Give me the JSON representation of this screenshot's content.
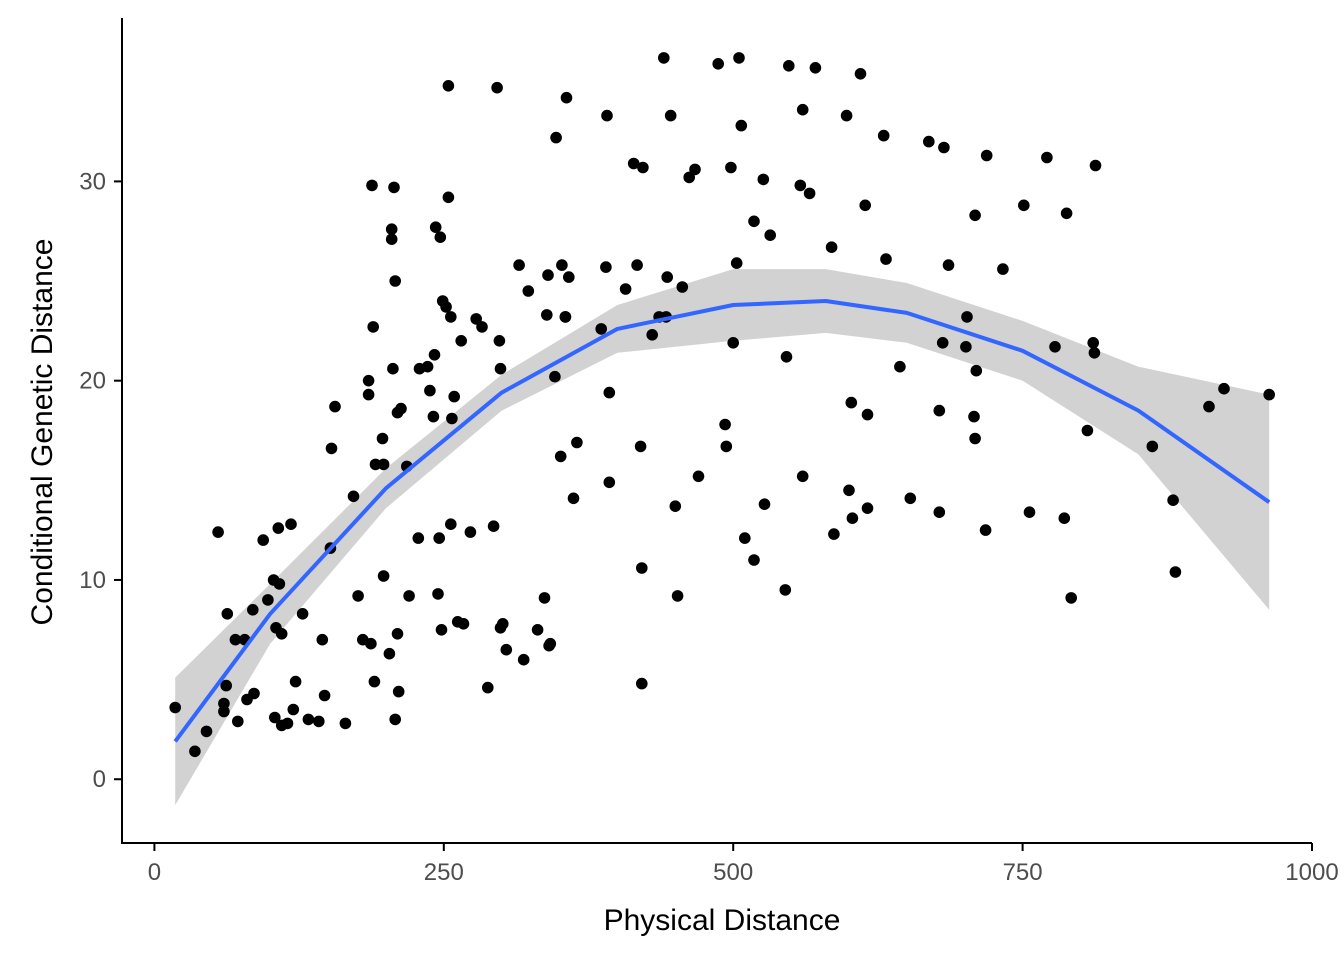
{
  "chart_data": {
    "type": "scatter",
    "xlabel": "Physical Distance",
    "ylabel": "Conditional Genetic Distance",
    "xlim": [
      -28,
      1000
    ],
    "ylim": [
      -3.2,
      38.2
    ],
    "x_ticks": [
      0,
      250,
      500,
      750,
      1000
    ],
    "x_tick_labels": [
      "0",
      "250",
      "500",
      "750",
      "1000"
    ],
    "y_ticks": [
      0,
      10,
      20,
      30
    ],
    "y_tick_labels": [
      "0",
      "10",
      "20",
      "30"
    ],
    "grid": false,
    "legend": "none",
    "colors": {
      "points": "#000000",
      "fit_line": "#3366ff",
      "confidence_band": "#d0d0d0",
      "axis": "#000000"
    },
    "fit": {
      "method": "quadratic",
      "x": [
        18,
        100,
        200,
        300,
        400,
        500,
        580,
        650,
        750,
        850,
        963
      ],
      "y": [
        1.9,
        8.3,
        14.6,
        19.4,
        22.6,
        23.8,
        24.0,
        23.4,
        21.5,
        18.5,
        13.9
      ],
      "lower": [
        -1.3,
        6.8,
        13.6,
        18.5,
        21.4,
        22.0,
        22.4,
        21.9,
        20.0,
        16.3,
        8.5
      ],
      "upper": [
        5.1,
        9.8,
        15.6,
        20.3,
        23.8,
        25.6,
        25.6,
        24.9,
        23.0,
        20.7,
        19.3
      ]
    },
    "points": [
      [
        18,
        3.6
      ],
      [
        35,
        1.4
      ],
      [
        45,
        2.4
      ],
      [
        55,
        12.4
      ],
      [
        60,
        3.8
      ],
      [
        60,
        3.4
      ],
      [
        62,
        4.7
      ],
      [
        63,
        8.3
      ],
      [
        70,
        7.0
      ],
      [
        72,
        2.9
      ],
      [
        78,
        7.0
      ],
      [
        80,
        4.0
      ],
      [
        85,
        8.5
      ],
      [
        86,
        4.3
      ],
      [
        94,
        12.0
      ],
      [
        98,
        9.0
      ],
      [
        103,
        10.0
      ],
      [
        104,
        3.1
      ],
      [
        105,
        7.6
      ],
      [
        107,
        12.6
      ],
      [
        108,
        9.8
      ],
      [
        110,
        7.3
      ],
      [
        110,
        2.7
      ],
      [
        115,
        2.8
      ],
      [
        118,
        12.8
      ],
      [
        120,
        3.5
      ],
      [
        122,
        4.9
      ],
      [
        128,
        8.3
      ],
      [
        133,
        3.0
      ],
      [
        142,
        2.9
      ],
      [
        145,
        7.0
      ],
      [
        147,
        4.2
      ],
      [
        152,
        11.6
      ],
      [
        153,
        16.6
      ],
      [
        156,
        18.7
      ],
      [
        165,
        2.8
      ],
      [
        172,
        14.2
      ],
      [
        176,
        9.2
      ],
      [
        180,
        7.0
      ],
      [
        185,
        20.0
      ],
      [
        185,
        19.3
      ],
      [
        187,
        6.8
      ],
      [
        188,
        29.8
      ],
      [
        189,
        22.7
      ],
      [
        190,
        4.9
      ],
      [
        191,
        15.8
      ],
      [
        197,
        17.1
      ],
      [
        198,
        15.8
      ],
      [
        198,
        10.2
      ],
      [
        203,
        6.3
      ],
      [
        205,
        27.6
      ],
      [
        205,
        27.1
      ],
      [
        206,
        20.6
      ],
      [
        207,
        29.7
      ],
      [
        208,
        25.0
      ],
      [
        208,
        3.0
      ],
      [
        210,
        18.4
      ],
      [
        210,
        7.3
      ],
      [
        211,
        4.4
      ],
      [
        213,
        18.6
      ],
      [
        218,
        15.7
      ],
      [
        220,
        9.2
      ],
      [
        228,
        12.1
      ],
      [
        229,
        20.6
      ],
      [
        236,
        20.7
      ],
      [
        238,
        19.5
      ],
      [
        241,
        18.2
      ],
      [
        242,
        21.3
      ],
      [
        243,
        27.7
      ],
      [
        245,
        9.3
      ],
      [
        246,
        12.1
      ],
      [
        247,
        27.2
      ],
      [
        248,
        7.5
      ],
      [
        249,
        24.0
      ],
      [
        252,
        23.7
      ],
      [
        254,
        34.8
      ],
      [
        254,
        29.2
      ],
      [
        256,
        12.8
      ],
      [
        256,
        23.2
      ],
      [
        257,
        18.1
      ],
      [
        259,
        19.2
      ],
      [
        262,
        7.9
      ],
      [
        265,
        22.0
      ],
      [
        267,
        7.8
      ],
      [
        273,
        12.4
      ],
      [
        278,
        23.1
      ],
      [
        283,
        22.7
      ],
      [
        288,
        4.6
      ],
      [
        293,
        12.7
      ],
      [
        296,
        34.7
      ],
      [
        298,
        22.0
      ],
      [
        299,
        20.6
      ],
      [
        299,
        7.6
      ],
      [
        301,
        7.8
      ],
      [
        304,
        6.5
      ],
      [
        315,
        25.8
      ],
      [
        319,
        6.0
      ],
      [
        323,
        24.5
      ],
      [
        331,
        7.5
      ],
      [
        337,
        9.1
      ],
      [
        340,
        25.3
      ],
      [
        339,
        23.3
      ],
      [
        341,
        6.7
      ],
      [
        342,
        6.8
      ],
      [
        346,
        20.2
      ],
      [
        347,
        32.2
      ],
      [
        351,
        16.2
      ],
      [
        352,
        25.8
      ],
      [
        355,
        23.2
      ],
      [
        355,
        23.2
      ],
      [
        356,
        34.2
      ],
      [
        358,
        25.2
      ],
      [
        362,
        14.1
      ],
      [
        365,
        16.9
      ],
      [
        386,
        22.6
      ],
      [
        390,
        25.7
      ],
      [
        391,
        33.3
      ],
      [
        393,
        19.4
      ],
      [
        393,
        14.9
      ],
      [
        407,
        24.6
      ],
      [
        414,
        30.9
      ],
      [
        417,
        25.8
      ],
      [
        420,
        16.7
      ],
      [
        421,
        4.8
      ],
      [
        421,
        10.6
      ],
      [
        422,
        30.7
      ],
      [
        430,
        22.3
      ],
      [
        436,
        23.2
      ],
      [
        440,
        36.2
      ],
      [
        442,
        23.2
      ],
      [
        443,
        25.2
      ],
      [
        446,
        33.3
      ],
      [
        450,
        13.7
      ],
      [
        452,
        9.2
      ],
      [
        456,
        24.7
      ],
      [
        462,
        30.2
      ],
      [
        467,
        30.6
      ],
      [
        470,
        15.2
      ],
      [
        487,
        35.9
      ],
      [
        493,
        17.8
      ],
      [
        494,
        16.7
      ],
      [
        498,
        30.7
      ],
      [
        500,
        21.9
      ],
      [
        503,
        25.9
      ],
      [
        505,
        36.2
      ],
      [
        507,
        32.8
      ],
      [
        510,
        12.1
      ],
      [
        518,
        11.0
      ],
      [
        518,
        28.0
      ],
      [
        526,
        30.1
      ],
      [
        527,
        13.8
      ],
      [
        532,
        27.3
      ],
      [
        545,
        9.5
      ],
      [
        546,
        21.2
      ],
      [
        548,
        35.8
      ],
      [
        558,
        29.8
      ],
      [
        560,
        15.2
      ],
      [
        560,
        33.6
      ],
      [
        566,
        29.4
      ],
      [
        571,
        35.7
      ],
      [
        585,
        26.7
      ],
      [
        587,
        12.3
      ],
      [
        598,
        33.3
      ],
      [
        600,
        14.5
      ],
      [
        602,
        18.9
      ],
      [
        603,
        13.1
      ],
      [
        610,
        35.4
      ],
      [
        614,
        28.8
      ],
      [
        616,
        18.3
      ],
      [
        616,
        13.6
      ],
      [
        630,
        32.3
      ],
      [
        632,
        26.1
      ],
      [
        644,
        20.7
      ],
      [
        653,
        14.1
      ],
      [
        669,
        32.0
      ],
      [
        678,
        18.5
      ],
      [
        678,
        13.4
      ],
      [
        681,
        21.9
      ],
      [
        682,
        31.7
      ],
      [
        686,
        25.8
      ],
      [
        701,
        21.7
      ],
      [
        702,
        23.2
      ],
      [
        708,
        18.2
      ],
      [
        709,
        17.1
      ],
      [
        709,
        28.3
      ],
      [
        710,
        20.5
      ],
      [
        718,
        12.5
      ],
      [
        719,
        31.3
      ],
      [
        733,
        25.6
      ],
      [
        751,
        28.8
      ],
      [
        756,
        13.4
      ],
      [
        771,
        31.2
      ],
      [
        778,
        21.7
      ],
      [
        786,
        13.1
      ],
      [
        788,
        28.4
      ],
      [
        792,
        9.1
      ],
      [
        806,
        17.5
      ],
      [
        811,
        21.9
      ],
      [
        812,
        21.4
      ],
      [
        813,
        30.8
      ],
      [
        862,
        16.7
      ],
      [
        880,
        14.0
      ],
      [
        882,
        10.4
      ],
      [
        911,
        18.7
      ],
      [
        924,
        19.6
      ],
      [
        963,
        19.3
      ]
    ]
  }
}
